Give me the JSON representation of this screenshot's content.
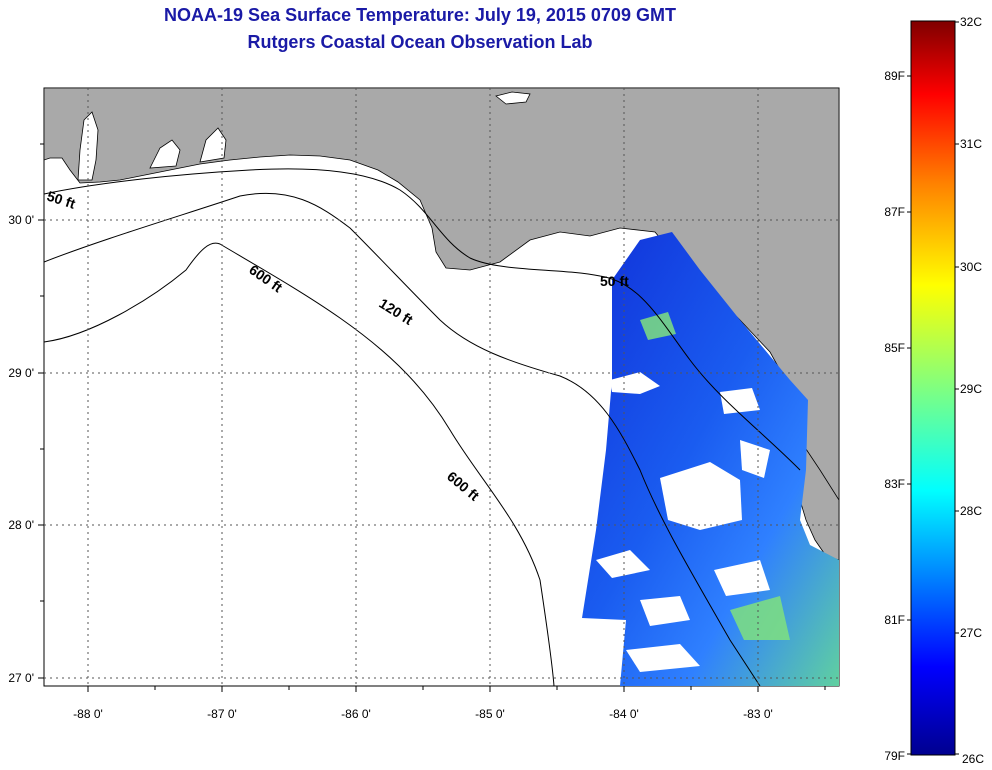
{
  "header": {
    "title": "NOAA-19 Sea Surface Temperature:  July 19, 2015 0709 GMT",
    "subtitle": "Rutgers Coastal Ocean Observation Lab"
  },
  "map": {
    "lon_ticks": [
      "-88 0'",
      "-87 0'",
      "-86 0'",
      "-85 0'",
      "-84 0'",
      "-83 0'"
    ],
    "lat_ticks": [
      "30 0'",
      "29 0'",
      "28 0'",
      "27 0'"
    ],
    "isobaths": [
      "50 ft",
      "600 ft",
      "120 ft",
      "600 ft",
      "50 ft"
    ],
    "colors": {
      "land": "#a9a9a9",
      "water": "#ffffff",
      "grid": "#555555"
    }
  },
  "colorbar": {
    "celsius": [
      "32C",
      "31C",
      "30C",
      "29C",
      "28C",
      "27C",
      "26C"
    ],
    "fahrenheit": [
      "89F",
      "87F",
      "85F",
      "83F",
      "81F",
      "79F"
    ],
    "colormap": [
      "#7f0000",
      "#ff0000",
      "#ff8000",
      "#ffff00",
      "#80ff80",
      "#00ffff",
      "#0080ff",
      "#0000ff",
      "#00008f"
    ]
  }
}
